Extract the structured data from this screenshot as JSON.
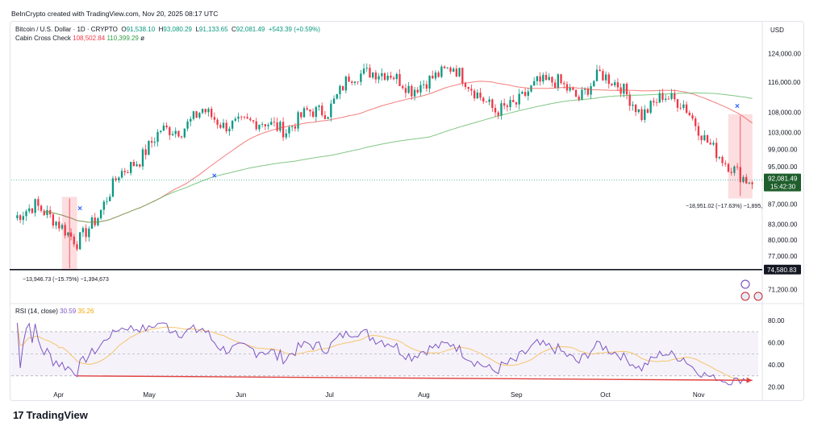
{
  "credit": "BeInCrypto created with TradingView.com, Nov 20, 2025 08:17 UTC",
  "legend": {
    "symbol": "Bitcoin / U.S. Dollar · 1D · CRYPTO",
    "o_label": "O",
    "o": "91,538.10",
    "h_label": "H",
    "h": "93,080.29",
    "l_label": "L",
    "l": "91,133.65",
    "c_label": "C",
    "c": "92,081.49",
    "change": "+543.39 (+0.59%)",
    "indicator": "Cabin Cross Check",
    "ma_fast": "108,502.84",
    "ma_slow": "110,399.29",
    "indicator_suffix": "ø"
  },
  "rsi_legend": {
    "label": "RSI (14, close)",
    "rsi": "30.59",
    "ma": "35.26"
  },
  "currency": "USD",
  "logo": "TradingView",
  "colors": {
    "up": "#089981",
    "down": "#f23645",
    "ma_fast": "#ef5350",
    "ma_slow": "#4caf50",
    "rsi": "#7e57c2",
    "rsi_ma": "#f7c56b",
    "support": "#131722",
    "divergence": "#e04040"
  },
  "chart_data": [
    {
      "type": "candlestick",
      "title": "Bitcoin / U.S. Dollar · 1D · CRYPTO",
      "y_scale": "log",
      "y_ticks": [
        124000,
        116000,
        108000,
        103000,
        99000,
        95000,
        87000,
        83000,
        80000,
        77000,
        71200
      ],
      "y_tick_labels": [
        "124,000.00",
        "116,000.00",
        "108,000.00",
        "103,000.00",
        "99,000.00",
        "95,000.00",
        "87,000.00",
        "83,000.00",
        "80,000.00",
        "77,000.00",
        "71,200.00"
      ],
      "x_tick_labels": [
        "Apr",
        "May",
        "Jun",
        "Jul",
        "Aug",
        "Sep",
        "Oct",
        "Nov"
      ],
      "ylim": [
        69500,
        128000
      ],
      "last_price": 92081.49,
      "last_price_label": "92,081.49",
      "countdown_label": "15:42:30",
      "support_level": 74580.83,
      "support_label": "74,580.83",
      "close_series_weekly": [
        [
          "2025-03-17",
          84200
        ],
        [
          "2025-03-24",
          86900
        ],
        [
          "2025-03-31",
          83500
        ],
        [
          "2025-04-07",
          79500
        ],
        [
          "2025-04-14",
          84400
        ],
        [
          "2025-04-21",
          93500
        ],
        [
          "2025-04-28",
          96500
        ],
        [
          "2025-05-05",
          103800
        ],
        [
          "2025-05-12",
          103500
        ],
        [
          "2025-05-19",
          108900
        ],
        [
          "2025-05-26",
          104500
        ],
        [
          "2025-06-02",
          105500
        ],
        [
          "2025-06-09",
          105600
        ],
        [
          "2025-06-16",
          103300
        ],
        [
          "2025-06-23",
          108400
        ],
        [
          "2025-06-30",
          108100
        ],
        [
          "2025-07-07",
          117500
        ],
        [
          "2025-07-14",
          118700
        ],
        [
          "2025-07-21",
          118300
        ],
        [
          "2025-07-28",
          113800
        ],
        [
          "2025-08-04",
          117200
        ],
        [
          "2025-08-11",
          120300
        ],
        [
          "2025-08-18",
          113500
        ],
        [
          "2025-08-25",
          108300
        ],
        [
          "2025-09-01",
          110200
        ],
        [
          "2025-09-08",
          115900
        ],
        [
          "2025-09-15",
          116200
        ],
        [
          "2025-09-22",
          111400
        ],
        [
          "2025-09-29",
          118400
        ],
        [
          "2025-10-06",
          114800
        ],
        [
          "2025-10-13",
          107100
        ],
        [
          "2025-10-20",
          112500
        ],
        [
          "2025-10-27",
          110100
        ],
        [
          "2025-11-03",
          101500
        ],
        [
          "2025-11-10",
          96000
        ],
        [
          "2025-11-17",
          92081
        ]
      ],
      "series": [
        {
          "name": "Cabin Cross Check fast",
          "last": 108502.84
        },
        {
          "name": "Cabin Cross Check slow",
          "last": 110399.29
        }
      ],
      "cross_markers": [
        "2025-04-08",
        "2025-05-23",
        "2025-11-14"
      ],
      "annotations": [
        {
          "text": "−13,946.73 (−15.75%) −1,394,673",
          "from_date": "2025-04-02",
          "to_date": "2025-04-07"
        },
        {
          "text": "−18,951.02 (−17.63%) −1,895,",
          "from_date": "2025-11-11",
          "to_date": "2025-11-19"
        }
      ]
    },
    {
      "type": "line",
      "title": "RSI (14, close)",
      "y_ticks": [
        80,
        60,
        40,
        20
      ],
      "y_tick_labels": [
        "80.00",
        "60.00",
        "40.00",
        "20.00"
      ],
      "ylim": [
        16,
        86
      ],
      "band": [
        30,
        70
      ],
      "series": [
        {
          "name": "RSI",
          "last": 30.59
        },
        {
          "name": "RSI MA",
          "last": 35.26
        }
      ],
      "divergence_line": {
        "from_date": "2025-04-07",
        "to_date": "2025-11-19",
        "from_value": 30,
        "to_value": 26
      }
    }
  ]
}
